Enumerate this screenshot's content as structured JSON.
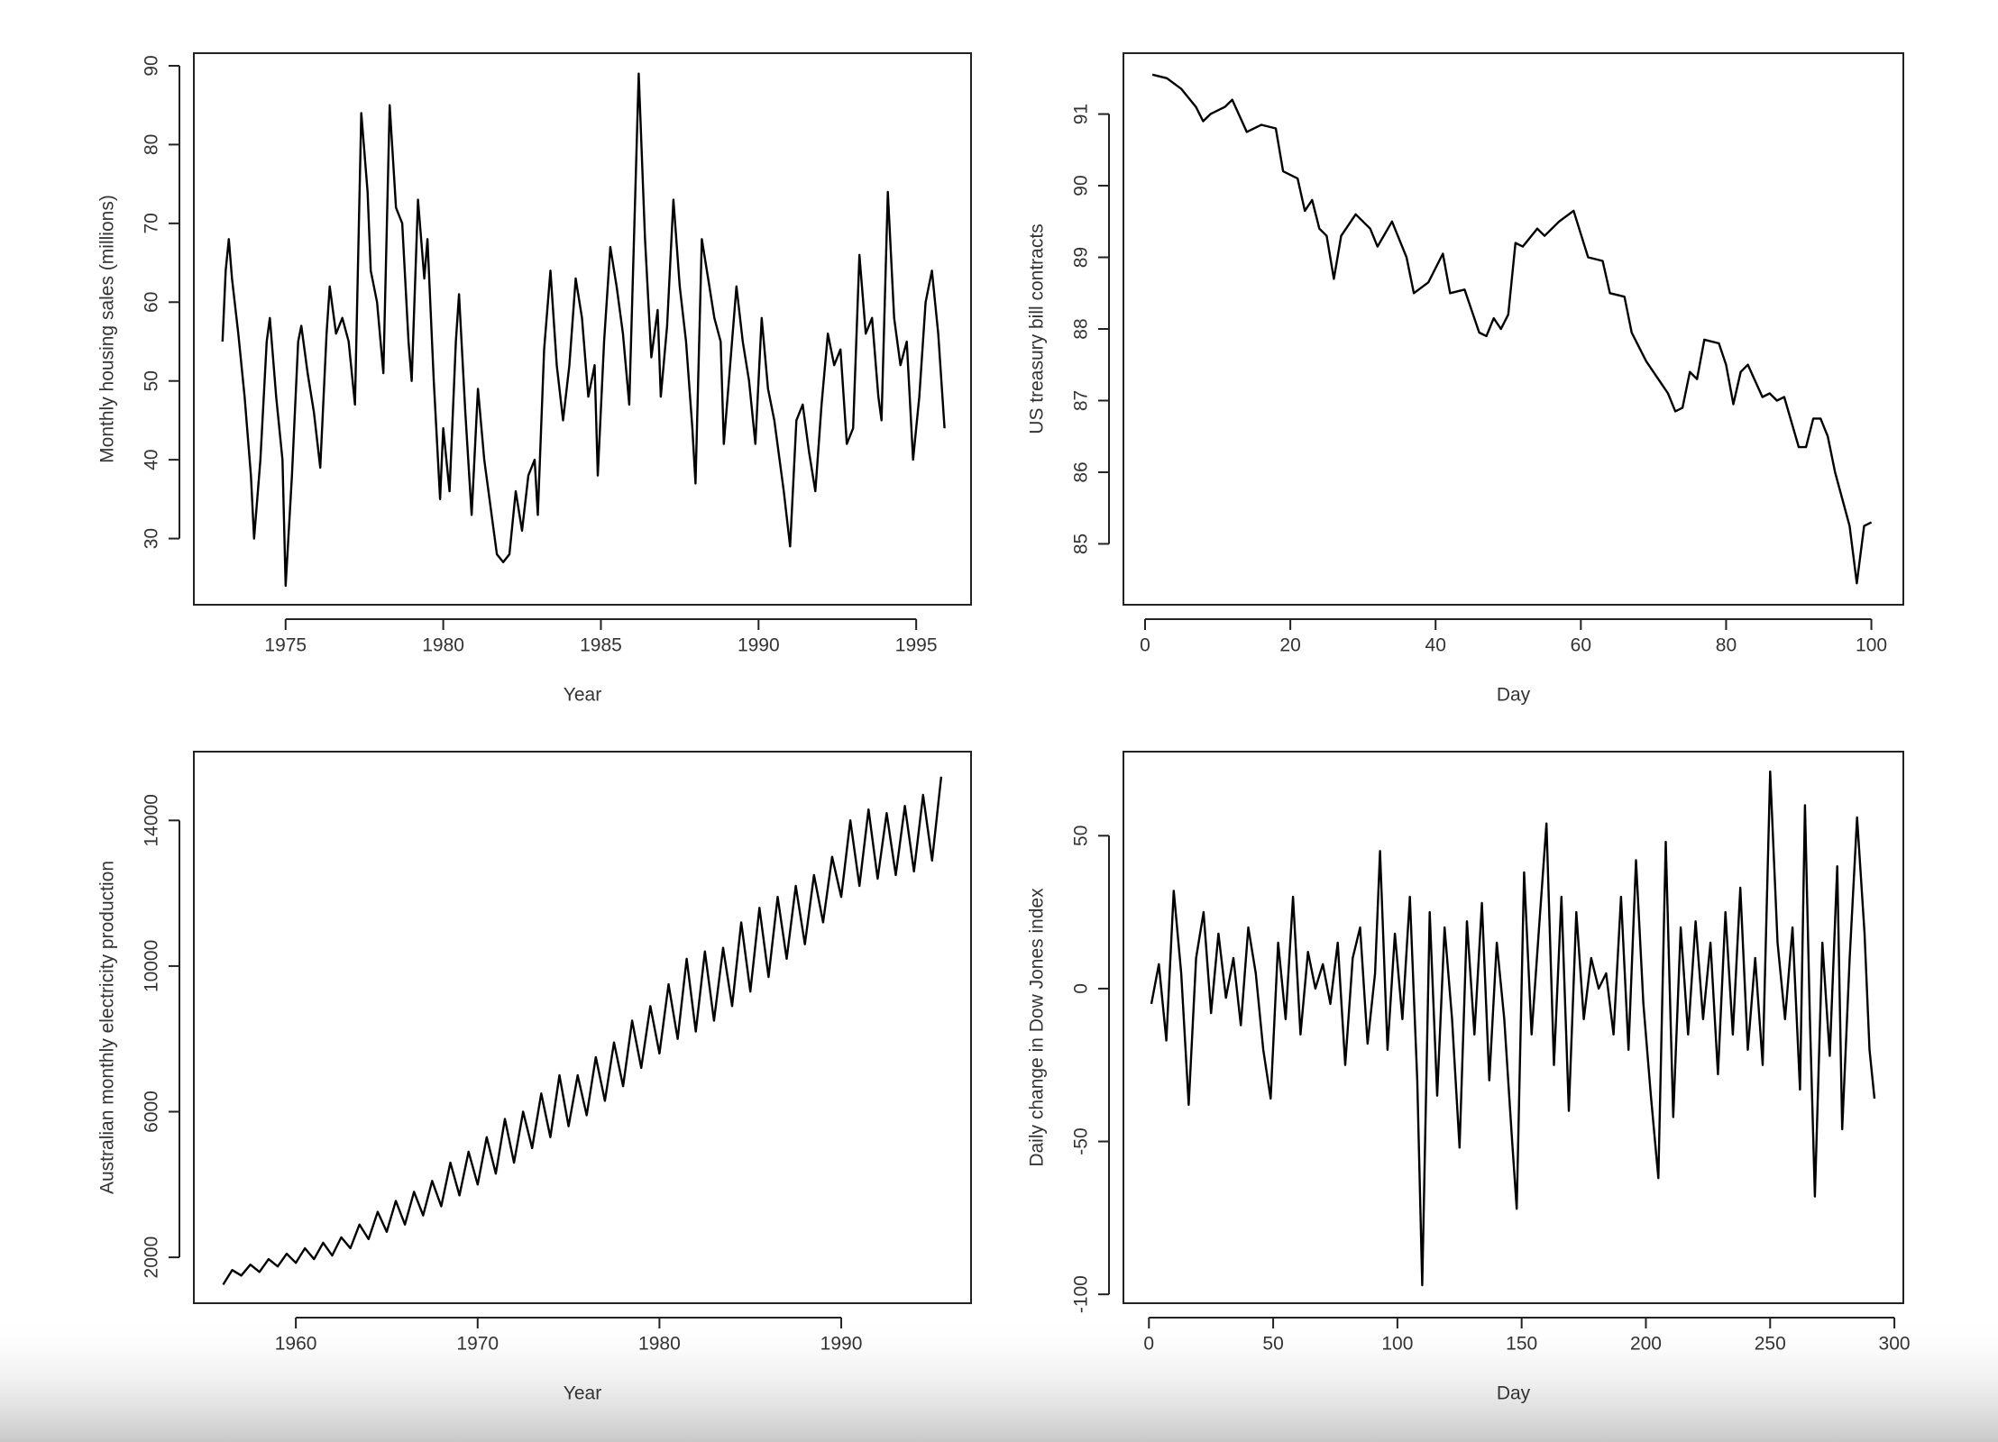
{
  "chart_data": [
    {
      "type": "line",
      "xlabel": "Year",
      "ylabel": "Monthly housing sales (millions)",
      "color": "#000000",
      "xlim": [
        1972.09,
        1996.74
      ],
      "ylim": [
        21.6,
        91.6
      ],
      "xticks": [
        1975,
        1980,
        1985,
        1990,
        1995
      ],
      "yticks": [
        30,
        40,
        50,
        60,
        70,
        80,
        90
      ],
      "x": [
        1973.0,
        1973.1,
        1973.2,
        1973.3,
        1973.5,
        1973.7,
        1973.9,
        1974.0,
        1974.2,
        1974.4,
        1974.5,
        1974.7,
        1974.9,
        1975.0,
        1975.2,
        1975.4,
        1975.5,
        1975.7,
        1975.9,
        1976.1,
        1976.3,
        1976.4,
        1976.6,
        1976.8,
        1977.0,
        1977.2,
        1977.4,
        1977.6,
        1977.7,
        1977.9,
        1978.1,
        1978.3,
        1978.5,
        1978.7,
        1978.9,
        1979.0,
        1979.2,
        1979.4,
        1979.5,
        1979.7,
        1979.9,
        1980.0,
        1980.2,
        1980.4,
        1980.5,
        1980.7,
        1980.9,
        1981.1,
        1981.3,
        1981.5,
        1981.7,
        1981.9,
        1982.1,
        1982.3,
        1982.5,
        1982.7,
        1982.9,
        1983.0,
        1983.2,
        1983.4,
        1983.6,
        1983.8,
        1984.0,
        1984.2,
        1984.4,
        1984.6,
        1984.8,
        1984.9,
        1985.1,
        1985.3,
        1985.5,
        1985.7,
        1985.9,
        1986.2,
        1986.4,
        1986.6,
        1986.8,
        1986.9,
        1987.1,
        1987.3,
        1987.5,
        1987.7,
        1987.9,
        1988.0,
        1988.2,
        1988.4,
        1988.6,
        1988.8,
        1988.9,
        1989.1,
        1989.3,
        1989.5,
        1989.7,
        1989.9,
        1990.1,
        1990.3,
        1990.5,
        1990.8,
        1991.0,
        1991.2,
        1991.4,
        1991.6,
        1991.8,
        1992.0,
        1992.2,
        1992.4,
        1992.6,
        1992.8,
        1993.0,
        1993.2,
        1993.4,
        1993.6,
        1993.8,
        1993.9,
        1994.1,
        1994.3,
        1994.5,
        1994.7,
        1994.9,
        1995.1,
        1995.3,
        1995.5,
        1995.7,
        1995.9
      ],
      "values": [
        55,
        64,
        68,
        63,
        56,
        48,
        38,
        30,
        40,
        55,
        58,
        48,
        40,
        24,
        38,
        55,
        57,
        51,
        46,
        39,
        56,
        62,
        56,
        58,
        55,
        47,
        84,
        74,
        64,
        60,
        51,
        85,
        72,
        70,
        55,
        50,
        73,
        63,
        68,
        50,
        35,
        44,
        36,
        55,
        61,
        46,
        33,
        49,
        40,
        34,
        28,
        27,
        28,
        36,
        31,
        38,
        40,
        33,
        54,
        64,
        52,
        45,
        52,
        63,
        58,
        48,
        52,
        38,
        55,
        67,
        62,
        56,
        47,
        89,
        68,
        53,
        59,
        48,
        57,
        73,
        62,
        55,
        44,
        37,
        68,
        63,
        58,
        55,
        42,
        52,
        62,
        55,
        50,
        42,
        58,
        49,
        45,
        36,
        29,
        45,
        47,
        41,
        36,
        47,
        56,
        52,
        54,
        42,
        44,
        66,
        56,
        58,
        48,
        45,
        74,
        58,
        52,
        55,
        40,
        48,
        60,
        64,
        56,
        44
      ]
    },
    {
      "type": "line",
      "xlabel": "Day",
      "ylabel": "US treasury bill contracts",
      "color": "#000000",
      "xlim": [
        -2.98,
        104.4
      ],
      "ylim": [
        84.15,
        91.85
      ],
      "xticks": [
        0,
        20,
        40,
        60,
        80,
        100
      ],
      "yticks": [
        85,
        86,
        87,
        88,
        89,
        90,
        91
      ],
      "x": [
        1,
        3,
        5,
        7,
        8,
        9,
        11,
        12,
        14,
        16,
        18,
        19,
        21,
        22,
        23,
        24,
        25,
        26,
        27,
        29,
        31,
        32,
        34,
        36,
        37,
        39,
        41,
        42,
        44,
        46,
        47,
        48,
        49,
        50,
        51,
        52,
        54,
        55,
        57,
        59,
        61,
        63,
        64,
        66,
        67,
        69,
        71,
        72,
        73,
        74,
        75,
        76,
        77,
        79,
        80,
        81,
        82,
        83,
        85,
        86,
        87,
        88,
        90,
        91,
        92,
        93,
        94,
        95,
        97,
        98,
        99,
        100
      ],
      "values": [
        91.55,
        91.5,
        91.35,
        91.1,
        90.9,
        91.0,
        91.1,
        91.2,
        90.75,
        90.85,
        90.8,
        90.2,
        90.1,
        89.65,
        89.8,
        89.4,
        89.3,
        88.7,
        89.3,
        89.6,
        89.4,
        89.15,
        89.5,
        89.0,
        88.5,
        88.65,
        89.05,
        88.5,
        88.55,
        87.95,
        87.9,
        88.15,
        88.0,
        88.2,
        89.2,
        89.15,
        89.4,
        89.3,
        89.5,
        89.65,
        89.0,
        88.95,
        88.5,
        88.45,
        87.95,
        87.55,
        87.25,
        87.1,
        86.85,
        86.9,
        87.4,
        87.3,
        87.85,
        87.8,
        87.5,
        86.95,
        87.4,
        87.5,
        87.05,
        87.1,
        87.0,
        87.05,
        86.35,
        86.35,
        86.75,
        86.75,
        86.5,
        86.0,
        85.25,
        84.45,
        85.25,
        85.3
      ]
    },
    {
      "type": "line",
      "xlabel": "Year",
      "ylabel": "Australian monthly electricity production",
      "color": "#000000",
      "xlim": [
        1954.39,
        1997.14
      ],
      "ylim": [
        740,
        15889
      ],
      "xticks": [
        1960,
        1970,
        1980,
        1990
      ],
      "yticks": [
        2000,
        6000,
        10000,
        14000
      ],
      "x": [
        1956.0,
        1956.5,
        1957.0,
        1957.5,
        1958.0,
        1958.5,
        1959.0,
        1959.5,
        1960.0,
        1960.5,
        1961.0,
        1961.5,
        1962.0,
        1962.5,
        1963.0,
        1963.5,
        1964.0,
        1964.5,
        1965.0,
        1965.5,
        1966.0,
        1966.5,
        1967.0,
        1967.5,
        1968.0,
        1968.5,
        1969.0,
        1969.5,
        1970.0,
        1970.5,
        1971.0,
        1971.5,
        1972.0,
        1972.5,
        1973.0,
        1973.5,
        1974.0,
        1974.5,
        1975.0,
        1975.5,
        1976.0,
        1976.5,
        1977.0,
        1977.5,
        1978.0,
        1978.5,
        1979.0,
        1979.5,
        1980.0,
        1980.5,
        1981.0,
        1981.5,
        1982.0,
        1982.5,
        1983.0,
        1983.5,
        1984.0,
        1984.5,
        1985.0,
        1985.5,
        1986.0,
        1986.5,
        1987.0,
        1987.5,
        1988.0,
        1988.5,
        1989.0,
        1989.5,
        1990.0,
        1990.5,
        1991.0,
        1991.5,
        1992.0,
        1992.5,
        1993.0,
        1993.5,
        1994.0,
        1994.5,
        1995.0,
        1995.5
      ],
      "values": [
        1250,
        1650,
        1500,
        1800,
        1600,
        1950,
        1750,
        2100,
        1850,
        2250,
        1950,
        2400,
        2050,
        2550,
        2250,
        2900,
        2500,
        3250,
        2700,
        3550,
        2900,
        3800,
        3150,
        4100,
        3400,
        4600,
        3700,
        4900,
        4000,
        5300,
        4300,
        5800,
        4600,
        6000,
        5000,
        6500,
        5300,
        7000,
        5600,
        7000,
        5900,
        7500,
        6300,
        7900,
        6700,
        8500,
        7200,
        8900,
        7600,
        9500,
        8000,
        10200,
        8200,
        10400,
        8500,
        10500,
        8900,
        11200,
        9300,
        11600,
        9700,
        11900,
        10200,
        12200,
        10600,
        12500,
        11200,
        13000,
        11900,
        14000,
        12200,
        14300,
        12400,
        14200,
        12500,
        14400,
        12600,
        14700,
        12900,
        15200
      ]
    },
    {
      "type": "line",
      "xlabel": "Day",
      "ylabel": "Daily change in Dow Jones index",
      "color": "#000000",
      "xlim": [
        -10.26,
        303.6
      ],
      "ylim": [
        -102.9,
        77.5
      ],
      "xticks": [
        0,
        50,
        100,
        150,
        200,
        250,
        300
      ],
      "yticks": [
        -100,
        -50,
        0,
        50
      ],
      "x": [
        1,
        4,
        7,
        10,
        13,
        16,
        19,
        22,
        25,
        28,
        31,
        34,
        37,
        40,
        43,
        46,
        49,
        52,
        55,
        58,
        61,
        64,
        67,
        70,
        73,
        76,
        79,
        82,
        85,
        88,
        91,
        93,
        96,
        99,
        102,
        105,
        108,
        110,
        113,
        116,
        119,
        122,
        125,
        128,
        131,
        134,
        137,
        140,
        143,
        146,
        148,
        151,
        154,
        157,
        160,
        163,
        166,
        169,
        172,
        175,
        178,
        181,
        184,
        187,
        190,
        193,
        196,
        199,
        202,
        205,
        208,
        211,
        214,
        217,
        220,
        223,
        226,
        229,
        232,
        235,
        238,
        241,
        244,
        247,
        250,
        253,
        256,
        259,
        262,
        264,
        266,
        268,
        271,
        274,
        277,
        279,
        282,
        285,
        288,
        290,
        292
      ],
      "values": [
        -5,
        8,
        -17,
        32,
        5,
        -38,
        10,
        25,
        -8,
        18,
        -3,
        10,
        -12,
        20,
        5,
        -20,
        -36,
        15,
        -10,
        30,
        -15,
        12,
        0,
        8,
        -5,
        15,
        -25,
        10,
        20,
        -18,
        5,
        45,
        -20,
        18,
        -10,
        30,
        -30,
        -97,
        25,
        -35,
        20,
        -10,
        -52,
        22,
        -15,
        28,
        -30,
        15,
        -10,
        -48,
        -72,
        38,
        -15,
        20,
        54,
        -25,
        30,
        -40,
        25,
        -10,
        10,
        0,
        5,
        -15,
        30,
        -20,
        42,
        -5,
        -35,
        -62,
        48,
        -42,
        20,
        -15,
        22,
        -10,
        15,
        -28,
        25,
        -15,
        33,
        -20,
        10,
        -25,
        71,
        15,
        -10,
        20,
        -33,
        60,
        -10,
        -68,
        15,
        -22,
        40,
        -46,
        10,
        56,
        18,
        -20,
        -36
      ]
    }
  ]
}
